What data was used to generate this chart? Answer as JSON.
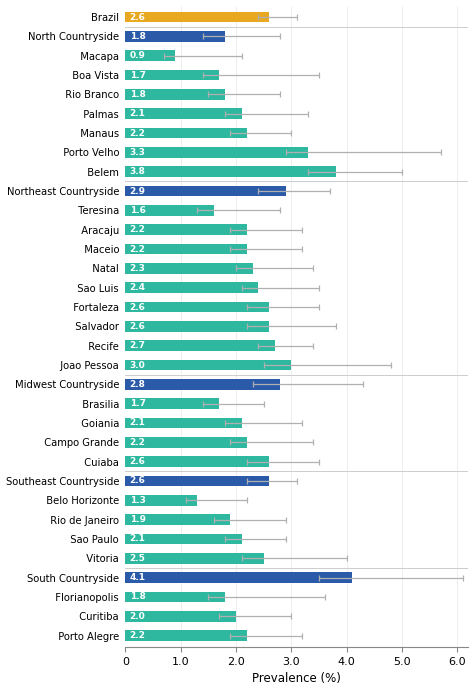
{
  "labels": [
    "Brazil",
    "North Countryside",
    "Macapa",
    "Boa Vista",
    "Rio Branco",
    "Palmas",
    "Manaus",
    "Porto Velho",
    "Belem",
    "Northeast Countryside",
    "Teresina",
    "Aracaju",
    "Maceio",
    "Natal",
    "Sao Luis",
    "Fortaleza",
    "Salvador",
    "Recife",
    "Joao Pessoa",
    "Midwest Countryside",
    "Brasilia",
    "Goiania",
    "Campo Grande",
    "Cuiaba",
    "Southeast Countryside",
    "Belo Horizonte",
    "Rio de Janeiro",
    "Sao Paulo",
    "Vitoria",
    "South Countryside",
    "Florianopolis",
    "Curitiba",
    "Porto Alegre"
  ],
  "values": [
    2.6,
    1.8,
    0.9,
    1.7,
    1.8,
    2.1,
    2.2,
    3.3,
    3.8,
    2.9,
    1.6,
    2.2,
    2.2,
    2.3,
    2.4,
    2.6,
    2.6,
    2.7,
    3.0,
    2.8,
    1.7,
    2.1,
    2.2,
    2.6,
    2.6,
    1.3,
    1.9,
    2.1,
    2.5,
    4.1,
    1.8,
    2.0,
    2.2
  ],
  "xerr_low": [
    0.2,
    0.4,
    0.2,
    0.3,
    0.3,
    0.3,
    0.3,
    0.4,
    0.5,
    0.5,
    0.3,
    0.3,
    0.3,
    0.3,
    0.3,
    0.4,
    0.4,
    0.3,
    0.5,
    0.5,
    0.3,
    0.3,
    0.3,
    0.4,
    0.4,
    0.2,
    0.3,
    0.3,
    0.4,
    0.6,
    0.3,
    0.3,
    0.3
  ],
  "xerr_high": [
    0.5,
    1.0,
    1.2,
    1.8,
    1.0,
    1.2,
    0.8,
    2.4,
    1.2,
    0.8,
    1.2,
    1.0,
    1.0,
    1.1,
    1.1,
    0.9,
    1.2,
    0.7,
    1.8,
    1.5,
    0.8,
    1.1,
    1.2,
    0.9,
    0.5,
    0.9,
    1.0,
    0.8,
    1.5,
    2.0,
    1.8,
    1.0,
    1.0
  ],
  "colors": [
    "#E8A820",
    "#2B5BA8",
    "#2EB8A0",
    "#2EB8A0",
    "#2EB8A0",
    "#2EB8A0",
    "#2EB8A0",
    "#2EB8A0",
    "#2EB8A0",
    "#2B5BA8",
    "#2EB8A0",
    "#2EB8A0",
    "#2EB8A0",
    "#2EB8A0",
    "#2EB8A0",
    "#2EB8A0",
    "#2EB8A0",
    "#2EB8A0",
    "#2EB8A0",
    "#2B5BA8",
    "#2EB8A0",
    "#2EB8A0",
    "#2EB8A0",
    "#2EB8A0",
    "#2B5BA8",
    "#2EB8A0",
    "#2EB8A0",
    "#2EB8A0",
    "#2EB8A0",
    "#2B5BA8",
    "#2EB8A0",
    "#2EB8A0",
    "#2EB8A0"
  ],
  "indented": [
    false,
    false,
    true,
    true,
    true,
    true,
    true,
    true,
    true,
    false,
    true,
    true,
    true,
    true,
    true,
    true,
    true,
    true,
    true,
    false,
    true,
    true,
    true,
    true,
    false,
    true,
    true,
    true,
    true,
    false,
    true,
    true,
    true
  ],
  "separator_after_indices": [
    0,
    8,
    18,
    23,
    28
  ],
  "xlim": [
    0,
    6.2
  ],
  "xticks": [
    0,
    1.0,
    2.0,
    3.0,
    4.0,
    5.0,
    6.0
  ],
  "xtick_labels": [
    "0",
    "1.0",
    "2.0",
    "3.0",
    "4.0",
    "5.0",
    "6.0"
  ],
  "xlabel": "Prevalence (%)",
  "bar_height": 0.55,
  "errorbar_color": "#b0b0b0",
  "text_color": "#ffffff",
  "label_fontsize": 7.2,
  "value_fontsize": 6.5,
  "xlabel_fontsize": 8.5,
  "xtick_fontsize": 8.0
}
